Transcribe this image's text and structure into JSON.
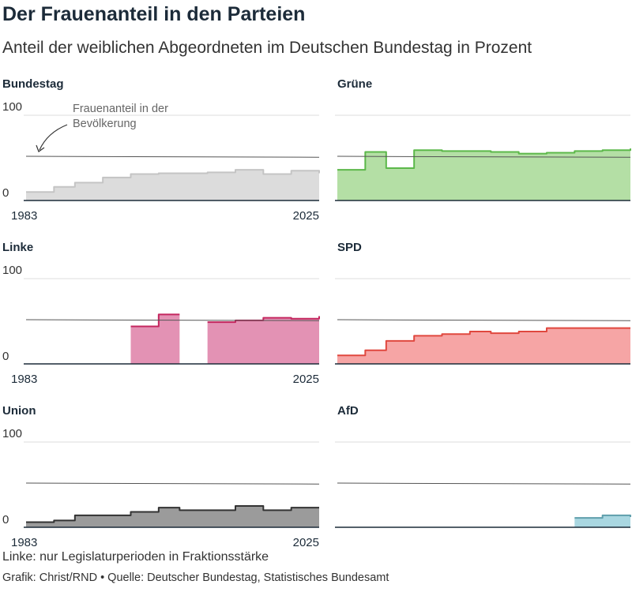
{
  "title": "Der Frauenanteil in den Parteien",
  "subtitle": "Anteil der weiblichen Abgeordneten im Deutschen Bundestag in Prozent",
  "footnote": "Linke: nur Legislaturperioden in Fraktionsstärke",
  "credits": "Grafik: Christ/RND • Quelle: Deutscher Bundestag, Statistisches Bundesamt",
  "annotation": [
    "Frauenanteil in der",
    "Bevölkerung"
  ],
  "chart_data": {
    "type": "area",
    "step": true,
    "x_start": 1983,
    "x_end": 2025,
    "x_tick_labels": [
      "1983",
      "2025"
    ],
    "y_range": [
      0,
      100
    ],
    "y_tick_labels": [
      "0",
      "100"
    ],
    "reference_line_name": "Frauenanteil in der Bevölkerung",
    "population_share": [
      [
        1983,
        51.8
      ],
      [
        2025,
        50.7
      ]
    ],
    "panels": [
      {
        "name": "Bundestag",
        "fill": "#dcdcdc",
        "stroke": "#c4c4c4",
        "segments": [
          [
            [
              1983,
              10
            ],
            [
              1987,
              16
            ],
            [
              1990,
              21
            ],
            [
              1994,
              27
            ],
            [
              1998,
              31
            ],
            [
              2002,
              32
            ],
            [
              2005,
              32
            ],
            [
              2009,
              33
            ],
            [
              2013,
              36
            ],
            [
              2017,
              31
            ],
            [
              2021,
              35
            ],
            [
              2025,
              32
            ]
          ]
        ],
        "x_labels": true
      },
      {
        "name": "Grüne",
        "fill": "#b4dfa5",
        "stroke": "#5cb84a",
        "segments": [
          [
            [
              1983,
              36
            ],
            [
              1987,
              57
            ],
            [
              1990,
              38
            ],
            [
              1994,
              59
            ],
            [
              1998,
              58
            ],
            [
              2002,
              58
            ],
            [
              2005,
              57
            ],
            [
              2009,
              55
            ],
            [
              2013,
              56
            ],
            [
              2017,
              58
            ],
            [
              2021,
              59
            ],
            [
              2025,
              61
            ]
          ]
        ],
        "x_labels": false
      },
      {
        "name": "Linke",
        "fill": "#e392b4",
        "stroke": "#c4275f",
        "segments": [
          [
            [
              1998,
              44
            ],
            [
              2002,
              58
            ]
          ],
          [
            [
              2009,
              49
            ],
            [
              2013,
              51
            ],
            [
              2017,
              54
            ],
            [
              2021,
              53
            ],
            [
              2025,
              56
            ]
          ]
        ],
        "end_years": [
          2005,
          2025
        ],
        "x_labels": true
      },
      {
        "name": "SPD",
        "fill": "#f6a5a5",
        "stroke": "#e0483f",
        "segments": [
          [
            [
              1983,
              10
            ],
            [
              1987,
              16
            ],
            [
              1990,
              27
            ],
            [
              1994,
              33
            ],
            [
              1998,
              35
            ],
            [
              2002,
              38
            ],
            [
              2005,
              36
            ],
            [
              2009,
              38
            ],
            [
              2013,
              42
            ],
            [
              2017,
              42
            ],
            [
              2021,
              42
            ],
            [
              2025,
              42
            ]
          ]
        ],
        "x_labels": false
      },
      {
        "name": "Union",
        "fill": "#9b9b9b",
        "stroke": "#333333",
        "segments": [
          [
            [
              1983,
              6
            ],
            [
              1987,
              8
            ],
            [
              1990,
              14
            ],
            [
              1994,
              14
            ],
            [
              1998,
              18
            ],
            [
              2002,
              23
            ],
            [
              2005,
              20
            ],
            [
              2009,
              20
            ],
            [
              2013,
              25
            ],
            [
              2017,
              20
            ],
            [
              2021,
              23
            ],
            [
              2025,
              23
            ]
          ]
        ],
        "x_labels": true
      },
      {
        "name": "AfD",
        "fill": "#a9d7e1",
        "stroke": "#5f9fac",
        "segments": [
          [
            [
              2017,
              11
            ],
            [
              2021,
              14
            ],
            [
              2025,
              12
            ]
          ]
        ],
        "x_labels": false
      }
    ]
  }
}
